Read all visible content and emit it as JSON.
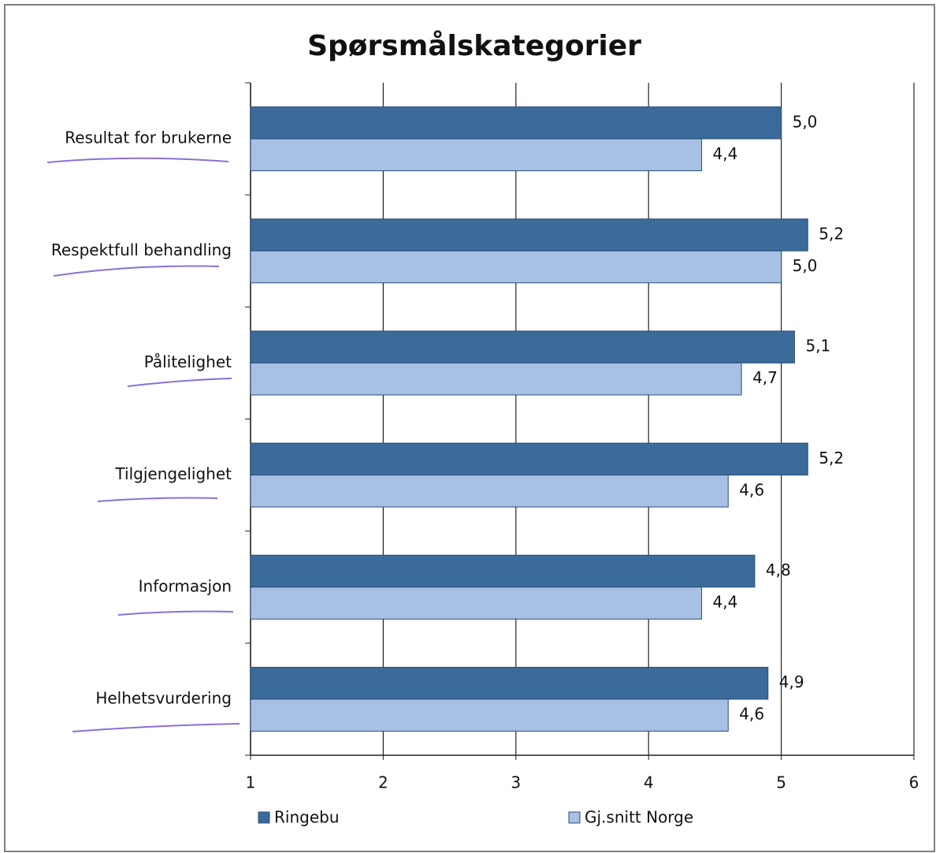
{
  "chart_data": {
    "type": "bar",
    "orientation": "horizontal",
    "title": "Spørsmålskategorier",
    "categories": [
      "Resultat for brukerne",
      "Respektfull behandling",
      "Pålitelighet",
      "Tilgjengelighet",
      "Informasjon",
      "Helhetsvurdering"
    ],
    "series": [
      {
        "name": "Ringebu",
        "color": "#3b6b9b",
        "values": [
          5.0,
          5.2,
          5.1,
          5.2,
          4.8,
          4.9
        ],
        "value_labels": [
          "5,0",
          "5,2",
          "5,1",
          "5,2",
          "4,8",
          "4,9"
        ]
      },
      {
        "name": "Gj.snitt Norge",
        "color": "#a8c0e3",
        "values": [
          4.4,
          5.0,
          4.7,
          4.6,
          4.4,
          4.6
        ],
        "value_labels": [
          "4,4",
          "5,0",
          "4,7",
          "4,6",
          "4,4",
          "4,6"
        ]
      }
    ],
    "xlim": [
      1,
      6
    ],
    "xticks": [
      1,
      2,
      3,
      4,
      5,
      6
    ],
    "grid": true,
    "legend": "bottom"
  }
}
